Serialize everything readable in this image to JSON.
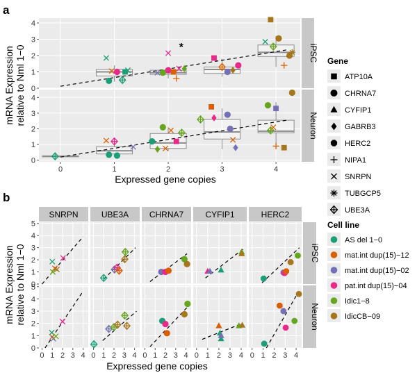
{
  "figure": {
    "panel_a_label": "a",
    "panel_b_label": "b"
  },
  "colors": {
    "panel_bg": "#ebebeb",
    "grid": "#ffffff",
    "strip_bg": "#c8c8c8",
    "box": "#8c8c8c",
    "cell_lines": [
      "#1b9e77",
      "#d95f02",
      "#7570b3",
      "#e7298a",
      "#66a61e",
      "#a6761d"
    ]
  },
  "legend_gene": {
    "title": "Gene",
    "items": [
      {
        "label": "ATP10A",
        "shape": "square"
      },
      {
        "label": "CHRNA7",
        "shape": "circle"
      },
      {
        "label": "CYFIP1",
        "shape": "triangle"
      },
      {
        "label": "GABRB3",
        "shape": "diamond"
      },
      {
        "label": "HERC2",
        "shape": "octagon"
      },
      {
        "label": "NIPA1",
        "shape": "plus"
      },
      {
        "label": "SNRPN",
        "shape": "cross"
      },
      {
        "label": "TUBGCP5",
        "shape": "asterisk"
      },
      {
        "label": "UBE3A",
        "shape": "diamond-plus"
      }
    ]
  },
  "legend_cell": {
    "title": "Cell line",
    "items": [
      "AS del 1−0",
      "mat.int dup(15)−12",
      "mat.int dup(15)−02",
      "pat.int dup(15)−04",
      "Idic1−8",
      "IdicCB−09"
    ]
  },
  "chart_data": [
    {
      "panel": "a",
      "type": "scatter",
      "xlabel": "Expressed gene copies",
      "ylabel": [
        "mRNA Expression",
        "relative to Nml 1−0"
      ],
      "xlim": [
        -0.4,
        4.45
      ],
      "x_ticks": [
        0,
        1,
        2,
        3,
        4
      ],
      "y_ticks": [
        0,
        1,
        2,
        3,
        4
      ],
      "facets": [
        {
          "label": "iPSC",
          "ylim": [
            0,
            4.3
          ],
          "annotation": {
            "text": "*",
            "x": 2.2,
            "y": 2.6
          },
          "trend": [
            [
              0,
              0.12
            ],
            [
              4.2,
              2.35
            ]
          ],
          "boxes": [
            {
              "x": 1,
              "q1": 0.75,
              "med": 1.0,
              "q3": 1.15,
              "lo": 0.4,
              "hi": 1.4
            },
            {
              "x": 2,
              "q1": 0.85,
              "med": 0.95,
              "q3": 1.1,
              "lo": 0.6,
              "hi": 1.3
            },
            {
              "x": 3,
              "q1": 0.9,
              "med": 1.15,
              "q3": 1.3,
              "lo": 0.7,
              "hi": 1.8
            },
            {
              "x": 4,
              "q1": 1.95,
              "med": 2.2,
              "q3": 2.65,
              "lo": 1.3,
              "hi": 3.2
            }
          ],
          "points": [
            {
              "gene": "ATP10A",
              "x": 1.2,
              "y": 1.0,
              "cell": 0
            },
            {
              "gene": "CHRNA7",
              "x": 0.9,
              "y": 0.45,
              "cell": 0
            },
            {
              "gene": "SNRPN",
              "x": 0.85,
              "y": 1.85,
              "cell": 0
            },
            {
              "gene": "SNRPN",
              "x": 1.25,
              "y": 1.1,
              "cell": 0
            },
            {
              "gene": "UBE3A",
              "x": 1.15,
              "y": 0.5,
              "cell": 0
            },
            {
              "gene": "SNRPN",
              "x": 0.95,
              "y": 1.05,
              "cell": 1
            },
            {
              "gene": "CHRNA7",
              "x": 1.05,
              "y": 1.0,
              "cell": 3
            },
            {
              "gene": "SNRPN",
              "x": 2.0,
              "y": 2.15,
              "cell": 3
            },
            {
              "gene": "SNRPN",
              "x": 2.2,
              "y": 1.2,
              "cell": 3
            },
            {
              "gene": "CHRNA7",
              "x": 2.0,
              "y": 1.1,
              "cell": 3
            },
            {
              "gene": "NIPA1",
              "x": 2.15,
              "y": 0.6,
              "cell": 1
            },
            {
              "gene": "ATP10A",
              "x": 2.1,
              "y": 1.0,
              "cell": 1
            },
            {
              "gene": "SNRPN",
              "x": 1.8,
              "y": 0.95,
              "cell": 2
            },
            {
              "gene": "CHRNA7",
              "x": 1.9,
              "y": 0.95,
              "cell": 4
            },
            {
              "gene": "GABRB3",
              "x": 2.3,
              "y": 1.2,
              "cell": 4
            },
            {
              "gene": "ATP10A",
              "x": 2.85,
              "y": 1.85,
              "cell": 3
            },
            {
              "gene": "CHRNA7",
              "x": 3.3,
              "y": 1.4,
              "cell": 3
            },
            {
              "gene": "UBE3A",
              "x": 3.0,
              "y": 1.3,
              "cell": 1
            },
            {
              "gene": "CHRNA7",
              "x": 3.1,
              "y": 1.0,
              "cell": 2
            },
            {
              "gene": "GABRB3",
              "x": 3.2,
              "y": 1.1,
              "cell": 5
            },
            {
              "gene": "ATP10A",
              "x": 3.9,
              "y": 4.2,
              "cell": 5
            },
            {
              "gene": "CHRNA7",
              "x": 4.05,
              "y": 3.05,
              "cell": 5
            },
            {
              "gene": "SNRPN",
              "x": 3.8,
              "y": 2.85,
              "cell": 0
            },
            {
              "gene": "NIPA1",
              "x": 4.15,
              "y": 1.4,
              "cell": 1
            },
            {
              "gene": "CHRNA7",
              "x": 4.25,
              "y": 2.0,
              "cell": 5
            },
            {
              "gene": "UBE3A",
              "x": 3.95,
              "y": 2.55,
              "cell": 4
            },
            {
              "gene": "TUBGCP5",
              "x": 4.3,
              "y": 2.2,
              "cell": 5
            }
          ]
        },
        {
          "label": "Neuron",
          "ylim": [
            -0.1,
            4.5
          ],
          "trend": [
            [
              0,
              0.2
            ],
            [
              4.2,
              2.55
            ]
          ],
          "boxes": [
            {
              "x": 0,
              "q1": 0.22,
              "med": 0.25,
              "q3": 0.28,
              "lo": 0.22,
              "hi": 0.28
            },
            {
              "x": 1,
              "q1": 0.4,
              "med": 0.6,
              "q3": 0.85,
              "lo": 0.3,
              "hi": 1.1
            },
            {
              "x": 2,
              "q1": 0.75,
              "med": 1.1,
              "q3": 1.7,
              "lo": 0.6,
              "hi": 2.1
            },
            {
              "x": 3,
              "q1": 1.35,
              "med": 1.8,
              "q3": 2.6,
              "lo": 0.7,
              "hi": 3.3
            },
            {
              "x": 4,
              "q1": 1.75,
              "med": 1.85,
              "q3": 2.55,
              "lo": 0.9,
              "hi": 3.7
            }
          ],
          "points": [
            {
              "gene": "UBE3A",
              "x": -0.1,
              "y": 0.25,
              "cell": 0
            },
            {
              "gene": "CHRNA7",
              "x": 0.9,
              "y": 0.35,
              "cell": 0
            },
            {
              "gene": "CHRNA7",
              "x": 1.05,
              "y": 0.3,
              "cell": 0
            },
            {
              "gene": "SNRPN",
              "x": 0.85,
              "y": 1.25,
              "cell": 1
            },
            {
              "gene": "UBE3A",
              "x": 1.0,
              "y": 1.2,
              "cell": 3
            },
            {
              "gene": "SNRPN",
              "x": 1.35,
              "y": 0.85,
              "cell": 2
            },
            {
              "gene": "CHRNA7",
              "x": 1.7,
              "y": 1.2,
              "cell": 0
            },
            {
              "gene": "CHRNA7",
              "x": 1.9,
              "y": 2.1,
              "cell": 4
            },
            {
              "gene": "GABRB3",
              "x": 1.8,
              "y": 0.7,
              "cell": 4
            },
            {
              "gene": "ATP10A",
              "x": 2.15,
              "y": 1.2,
              "cell": 3
            },
            {
              "gene": "SNRPN",
              "x": 2.05,
              "y": 1.9,
              "cell": 1
            },
            {
              "gene": "UBE3A",
              "x": 2.25,
              "y": 1.75,
              "cell": 4
            },
            {
              "gene": "SNRPN",
              "x": 1.95,
              "y": 0.75,
              "cell": 1
            },
            {
              "gene": "ATP10A",
              "x": 2.8,
              "y": 3.4,
              "cell": 1
            },
            {
              "gene": "GABRB3",
              "x": 2.85,
              "y": 2.7,
              "cell": 3
            },
            {
              "gene": "CHRNA7",
              "x": 3.15,
              "y": 2.0,
              "cell": 2
            },
            {
              "gene": "CHRNA7",
              "x": 3.1,
              "y": 2.9,
              "cell": 2
            },
            {
              "gene": "GABRB3",
              "x": 3.25,
              "y": 0.8,
              "cell": 2
            },
            {
              "gene": "UBE3A",
              "x": 2.6,
              "y": 2.6,
              "cell": 4
            },
            {
              "gene": "SNRPN",
              "x": 3.2,
              "y": 1.3,
              "cell": 1
            },
            {
              "gene": "CHRNA7",
              "x": 4.3,
              "y": 4.3,
              "cell": 5
            },
            {
              "gene": "ATP10A",
              "x": 4.0,
              "y": 3.3,
              "cell": 2
            },
            {
              "gene": "CHRNA7",
              "x": 3.85,
              "y": 3.5,
              "cell": 4
            },
            {
              "gene": "NIPA1",
              "x": 4.0,
              "y": 0.9,
              "cell": 1
            },
            {
              "gene": "ATP10A",
              "x": 4.15,
              "y": 0.8,
              "cell": 5
            },
            {
              "gene": "UBE3A",
              "x": 3.9,
              "y": 1.9,
              "cell": 4
            },
            {
              "gene": "SNRPN",
              "x": 3.95,
              "y": 2.1,
              "cell": 1
            }
          ]
        }
      ]
    },
    {
      "panel": "b",
      "type": "scatter",
      "xlabel": "Expressed gene copies",
      "ylabel": [
        "mRNA Expression",
        "relative to Nml 1−0"
      ],
      "xlim": [
        -0.3,
        4.5
      ],
      "ylim": [
        0,
        5.1
      ],
      "x_ticks": [
        0,
        1,
        2,
        3,
        4
      ],
      "y_ticks": [
        0,
        1,
        2,
        3,
        4,
        5
      ],
      "columns": [
        "SNRPN",
        "UBE3A",
        "CHRNA7",
        "CYFIP1",
        "HERC2"
      ],
      "rows": [
        "iPSC",
        "Neuron"
      ],
      "column_shapes": [
        "cross",
        "diamond-plus",
        "circle",
        "triangle",
        "octagon"
      ],
      "trends": {
        "iPSC": [
          [
            0,
            0,
            4,
            3.9
          ],
          [
            1,
            0.4,
            4.1,
            3.0
          ],
          [
            0.5,
            0.2,
            4.1,
            2.5
          ],
          [
            0.8,
            0.5,
            4.2,
            2.9
          ],
          [
            0.9,
            0.1,
            4.3,
            3.0
          ]
        ],
        "Neuron": [
          [
            0.3,
            0,
            3.9,
            4.5
          ],
          [
            0.9,
            0.6,
            4.2,
            3.0
          ],
          [
            0.5,
            0.1,
            4.1,
            3.3
          ],
          [
            0.5,
            0.7,
            4.1,
            2.0
          ],
          [
            1.3,
            0,
            4.1,
            4.4
          ]
        ]
      },
      "points": {
        "iPSC": [
          [
            {
              "x": 1.0,
              "y": 1.85,
              "cell": 0
            },
            {
              "x": 1.25,
              "y": 1.3,
              "cell": 1
            },
            {
              "x": 1.05,
              "y": 1.0,
              "cell": 4
            },
            {
              "x": 1.45,
              "y": 1.2,
              "cell": 5
            },
            {
              "x": 2.05,
              "y": 2.15,
              "cell": 3
            }
          ],
          [
            {
              "x": 1.0,
              "y": 0.5,
              "cell": 0
            },
            {
              "x": 2.05,
              "y": 1.2,
              "cell": 2
            },
            {
              "x": 2.3,
              "y": 1.35,
              "cell": 3
            },
            {
              "x": 2.5,
              "y": 1.1,
              "cell": 1
            },
            {
              "x": 3.05,
              "y": 2.05,
              "cell": 5
            },
            {
              "x": 3.1,
              "y": 2.65,
              "cell": 4
            }
          ],
          [
            {
              "x": 1.6,
              "y": 1.0,
              "cell": 2
            },
            {
              "x": 2.0,
              "y": 1.0,
              "cell": 3
            },
            {
              "x": 2.3,
              "y": 1.1,
              "cell": 1
            },
            {
              "x": 3.85,
              "y": 2.05,
              "cell": 4
            },
            {
              "x": 4.1,
              "y": 1.65,
              "cell": 5
            }
          ],
          [
            {
              "x": 1.0,
              "y": 1.05,
              "cell": 3
            },
            {
              "x": 1.2,
              "y": 1.05,
              "cell": 2
            },
            {
              "x": 2.2,
              "y": 1.15,
              "cell": 0
            },
            {
              "x": 4.05,
              "y": 2.65,
              "cell": 4
            },
            {
              "x": 4.05,
              "y": 2.5,
              "cell": 5
            }
          ],
          [
            {
              "x": 1.05,
              "y": 0.45,
              "cell": 0
            },
            {
              "x": 2.85,
              "y": 0.95,
              "cell": 2
            },
            {
              "x": 2.95,
              "y": 0.9,
              "cell": 3
            },
            {
              "x": 3.1,
              "y": 1.05,
              "cell": 1
            },
            {
              "x": 3.5,
              "y": 1.8,
              "cell": 5
            },
            {
              "x": 4.15,
              "y": 2.35,
              "cell": 4
            }
          ]
        ],
        "Neuron": [
          [
            {
              "x": 0.95,
              "y": 1.25,
              "cell": 0
            },
            {
              "x": 1.0,
              "y": 0.9,
              "cell": 1
            },
            {
              "x": 1.1,
              "y": 0.75,
              "cell": 2
            },
            {
              "x": 1.35,
              "y": 0.95,
              "cell": 4
            },
            {
              "x": 2.0,
              "y": 2.15,
              "cell": 3
            }
          ],
          [
            {
              "x": 0.05,
              "y": 0.3,
              "cell": 0
            },
            {
              "x": 1.5,
              "y": 1.55,
              "cell": 2
            },
            {
              "x": 2.0,
              "y": 1.7,
              "cell": 4
            },
            {
              "x": 2.35,
              "y": 1.9,
              "cell": 5
            },
            {
              "x": 3.05,
              "y": 2.65,
              "cell": 4
            },
            {
              "x": 3.25,
              "y": 1.8,
              "cell": 5
            }
          ],
          [
            {
              "x": 1.7,
              "y": 2.2,
              "cell": 0
            },
            {
              "x": 2.0,
              "y": 1.95,
              "cell": 3
            },
            {
              "x": 2.15,
              "y": 1.2,
              "cell": 1
            },
            {
              "x": 3.85,
              "y": 2.75,
              "cell": 5
            },
            {
              "x": 4.15,
              "y": 3.6,
              "cell": 4
            }
          ],
          [
            {
              "x": 2.0,
              "y": 1.8,
              "cell": 1
            },
            {
              "x": 2.1,
              "y": 1.2,
              "cell": 0
            },
            {
              "x": 2.2,
              "y": 0.75,
              "cell": 0
            },
            {
              "x": 2.2,
              "y": 1.0,
              "cell": 2
            },
            {
              "x": 3.8,
              "y": 1.8,
              "cell": 4
            },
            {
              "x": 4.1,
              "y": 1.85,
              "cell": 5
            }
          ],
          [
            {
              "x": 1.1,
              "y": 0.35,
              "cell": 0
            },
            {
              "x": 2.5,
              "y": 3.45,
              "cell": 1
            },
            {
              "x": 2.85,
              "y": 3.0,
              "cell": 2
            },
            {
              "x": 3.05,
              "y": 1.65,
              "cell": 3
            },
            {
              "x": 3.85,
              "y": 2.2,
              "cell": 4
            },
            {
              "x": 4.25,
              "y": 4.4,
              "cell": 5
            }
          ]
        ]
      }
    }
  ]
}
